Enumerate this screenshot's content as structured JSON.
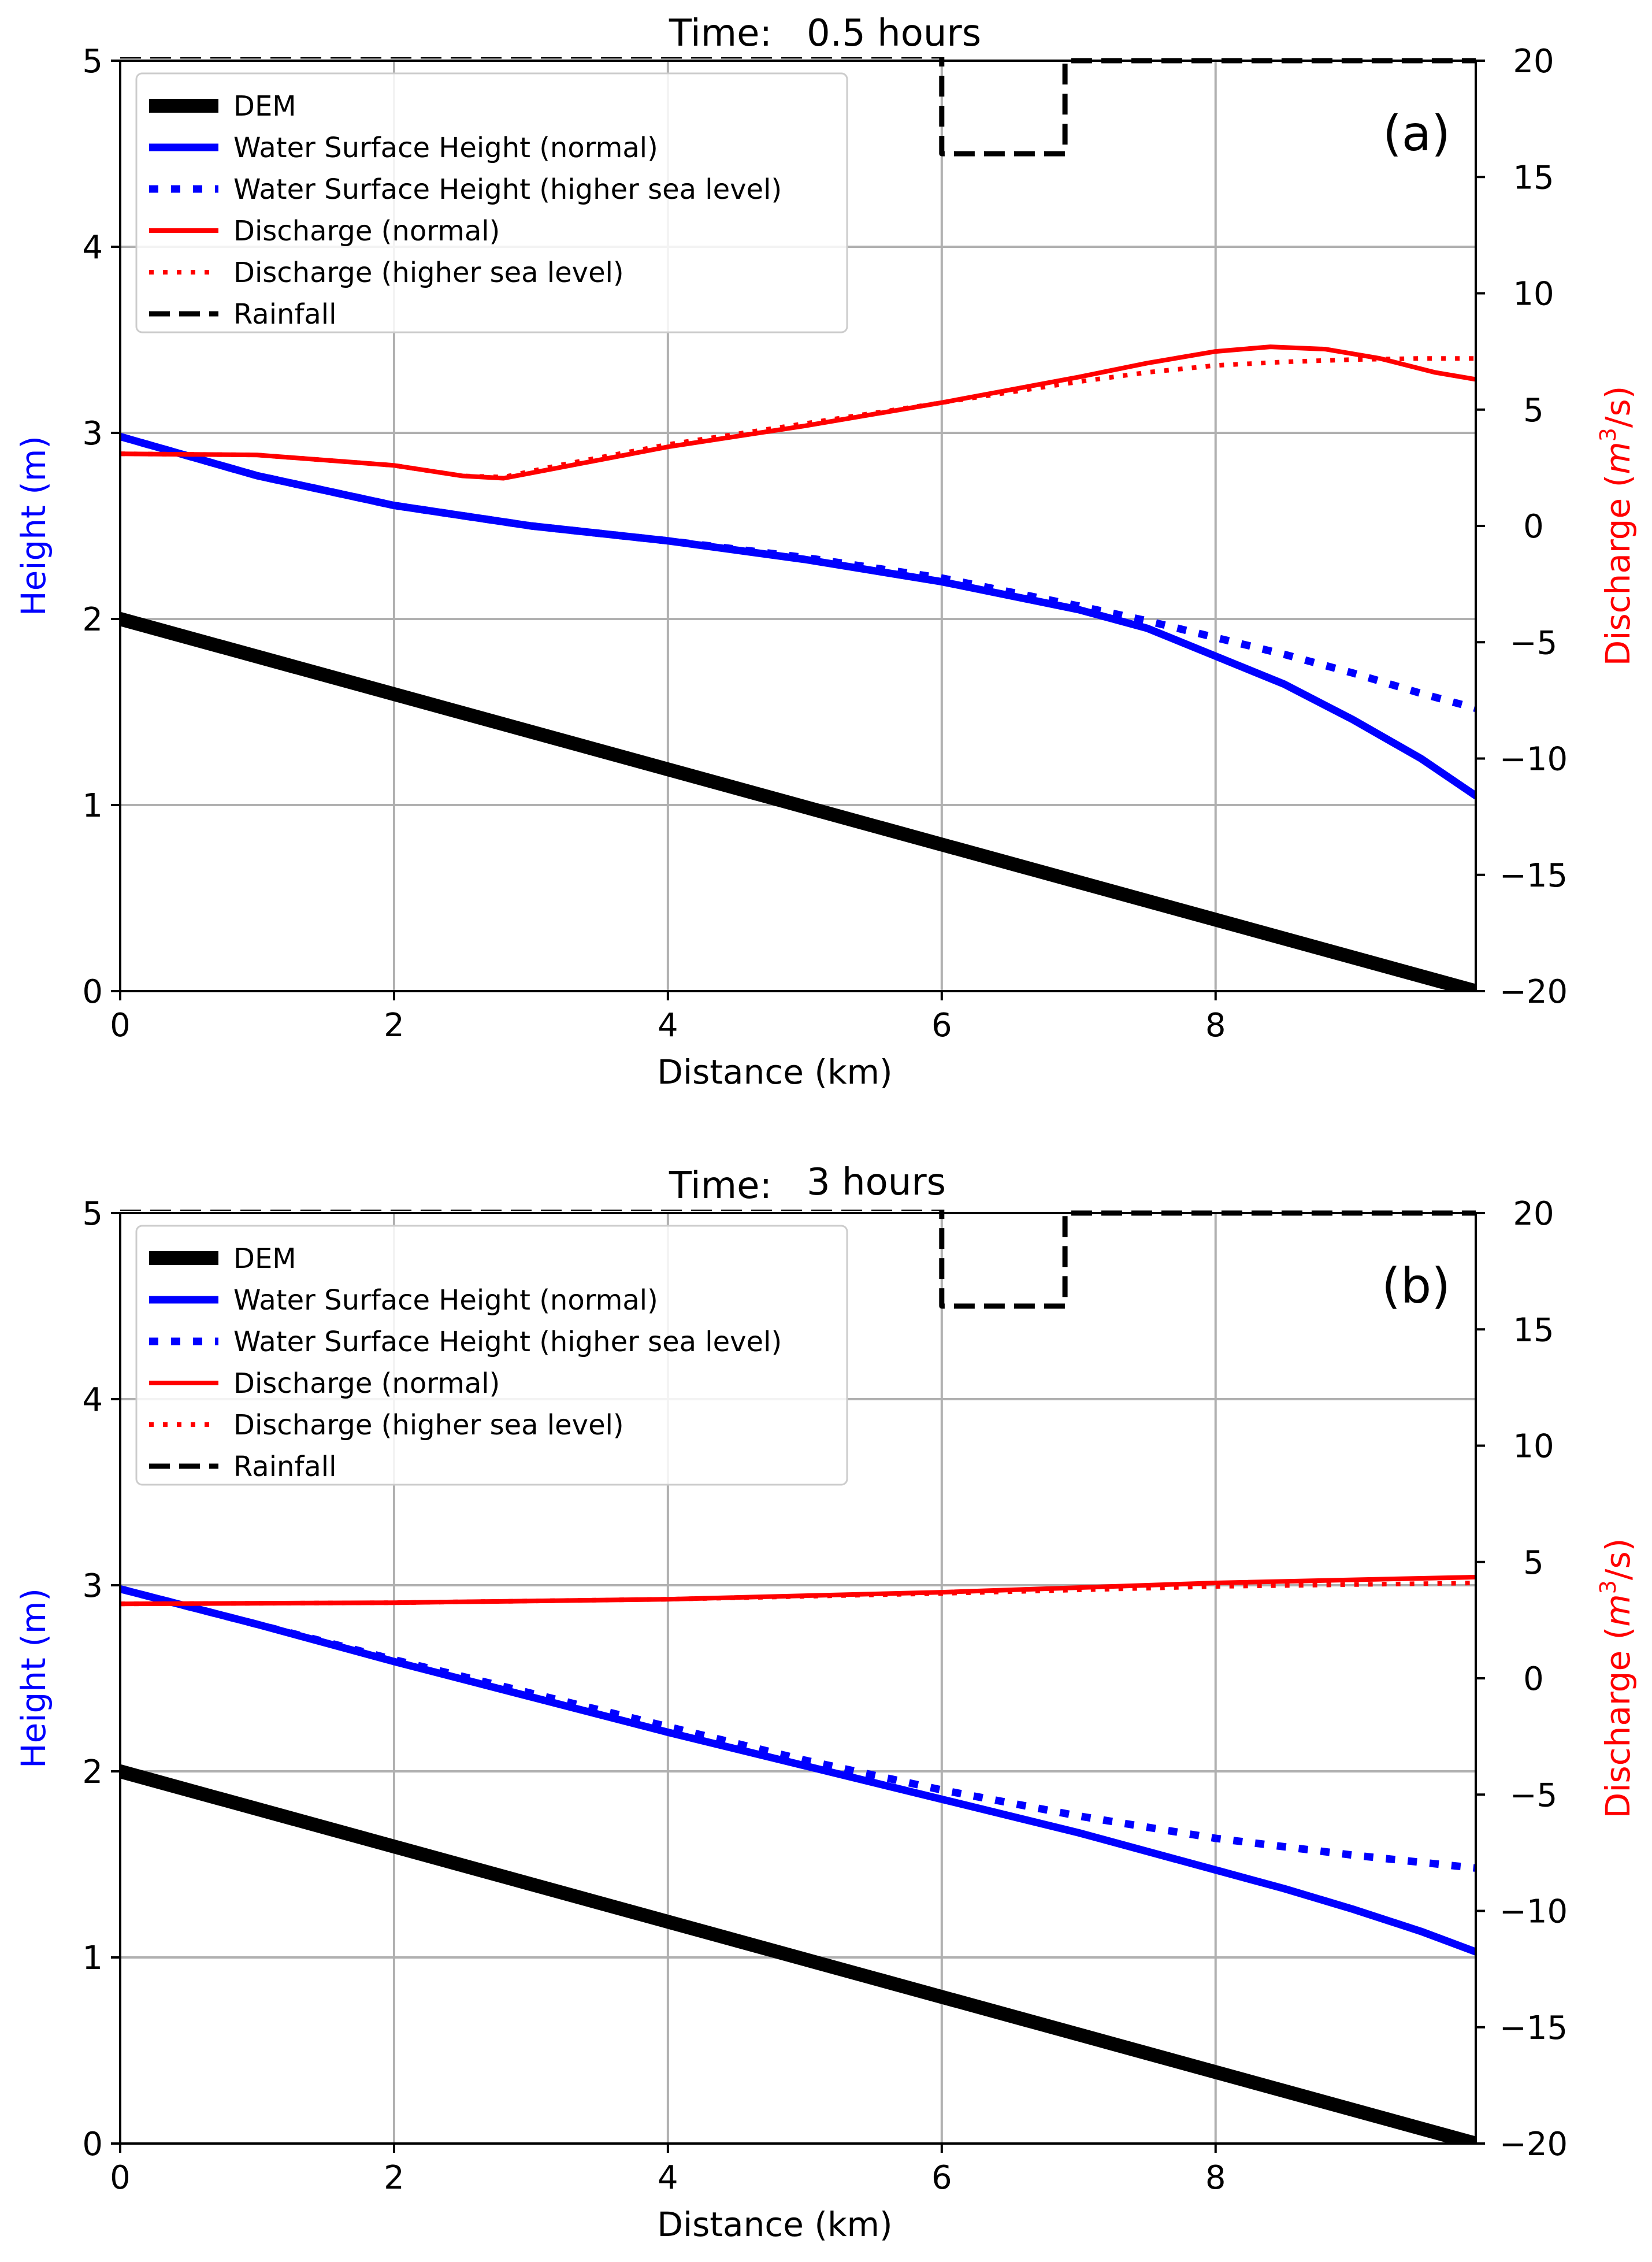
{
  "colors": {
    "dem": "#000000",
    "water": "#0000ff",
    "discharge": "#ff0000",
    "rainfall": "#000000",
    "grid": "#b0b0b0"
  },
  "chart_data": [
    {
      "type": "line",
      "panel_label": "(a)",
      "title_prefix": "Time:",
      "title_value": "0.5 hours",
      "xlabel": "Distance (km)",
      "ylabel": "Height (m)",
      "ylabel2_text": "Discharge (",
      "ylabel2_var": "m",
      "ylabel2_sup": "3",
      "ylabel2_tail": "/s)",
      "xlim": [
        0,
        9.9
      ],
      "ylim": [
        0,
        5
      ],
      "y2lim": [
        -20,
        20
      ],
      "xticks": [
        0,
        2,
        4,
        6,
        8
      ],
      "yticks": [
        0,
        1,
        2,
        3,
        4,
        5
      ],
      "y2ticks": [
        -20,
        -15,
        -10,
        -5,
        0,
        5,
        10,
        15,
        20
      ],
      "y2tick_labels": [
        "−20",
        "−15",
        "−10",
        "−5",
        "0",
        "5",
        "10",
        "15",
        "20"
      ],
      "legend": [
        {
          "key": "dem",
          "label": "DEM"
        },
        {
          "key": "wsh_normal",
          "label": "Water Surface Height (normal)"
        },
        {
          "key": "wsh_high",
          "label": "Water Surface Height (higher sea level)"
        },
        {
          "key": "q_normal",
          "label": "Discharge (normal)"
        },
        {
          "key": "q_high",
          "label": "Discharge (higher sea level)"
        },
        {
          "key": "rainfall",
          "label": "Rainfall"
        }
      ],
      "series": [
        {
          "name": "DEM",
          "key": "dem",
          "axis": "left",
          "x": [
            0,
            9.9
          ],
          "y": [
            2.0,
            0.0
          ]
        },
        {
          "name": "Water Surface Height (normal)",
          "key": "wsh_normal",
          "axis": "left",
          "x": [
            0,
            1,
            2,
            3,
            4,
            5,
            6,
            7,
            7.5,
            8,
            8.5,
            9,
            9.5,
            9.9
          ],
          "y": [
            2.98,
            2.77,
            2.61,
            2.5,
            2.42,
            2.32,
            2.2,
            2.05,
            1.95,
            1.8,
            1.65,
            1.46,
            1.25,
            1.05
          ]
        },
        {
          "name": "Water Surface Height (higher sea level)",
          "key": "wsh_high",
          "axis": "left",
          "x": [
            0,
            1,
            2,
            3,
            4,
            5,
            6,
            7,
            7.5,
            8,
            8.5,
            9,
            9.5,
            9.9
          ],
          "y": [
            2.98,
            2.77,
            2.61,
            2.5,
            2.42,
            2.33,
            2.22,
            2.07,
            1.99,
            1.9,
            1.81,
            1.71,
            1.6,
            1.52
          ]
        },
        {
          "name": "Discharge (normal)",
          "key": "q_normal",
          "axis": "right",
          "x": [
            0,
            1,
            2,
            2.5,
            2.8,
            3.2,
            4,
            5,
            6,
            7,
            7.5,
            8,
            8.4,
            8.8,
            9.2,
            9.6,
            9.9
          ],
          "y": [
            3.1,
            3.05,
            2.6,
            2.15,
            2.05,
            2.5,
            3.4,
            4.3,
            5.3,
            6.4,
            7.0,
            7.5,
            7.7,
            7.6,
            7.2,
            6.6,
            6.3
          ]
        },
        {
          "name": "Discharge (higher sea level)",
          "key": "q_high",
          "axis": "right",
          "x": [
            0,
            1,
            2,
            2.5,
            2.8,
            3.2,
            4,
            5,
            6,
            7,
            7.5,
            8,
            8.5,
            9,
            9.5,
            9.9
          ],
          "y": [
            3.1,
            3.05,
            2.6,
            2.15,
            2.1,
            2.6,
            3.5,
            4.4,
            5.3,
            6.2,
            6.6,
            6.9,
            7.05,
            7.15,
            7.2,
            7.2
          ]
        },
        {
          "name": "Rainfall",
          "key": "rainfall",
          "axis": "right",
          "x": [
            0,
            6.0,
            6.0,
            6.9,
            6.9,
            9.9
          ],
          "y": [
            20.2,
            20.2,
            16.0,
            16.0,
            20.0,
            20.0
          ]
        }
      ]
    },
    {
      "type": "line",
      "panel_label": "(b)",
      "title_prefix": "Time:",
      "title_value": "3 hours",
      "xlabel": "Distance (km)",
      "ylabel": "Height (m)",
      "ylabel2_text": "Discharge (",
      "ylabel2_var": "m",
      "ylabel2_sup": "3",
      "ylabel2_tail": "/s)",
      "xlim": [
        0,
        9.9
      ],
      "ylim": [
        0,
        5
      ],
      "y2lim": [
        -20,
        20
      ],
      "xticks": [
        0,
        2,
        4,
        6,
        8
      ],
      "yticks": [
        0,
        1,
        2,
        3,
        4,
        5
      ],
      "y2ticks": [
        -20,
        -15,
        -10,
        -5,
        0,
        5,
        10,
        15,
        20
      ],
      "y2tick_labels": [
        "−20",
        "−15",
        "−10",
        "−5",
        "0",
        "5",
        "10",
        "15",
        "20"
      ],
      "legend": [
        {
          "key": "dem",
          "label": "DEM"
        },
        {
          "key": "wsh_normal",
          "label": "Water Surface Height (normal)"
        },
        {
          "key": "wsh_high",
          "label": "Water Surface Height (higher sea level)"
        },
        {
          "key": "q_normal",
          "label": "Discharge (normal)"
        },
        {
          "key": "q_high",
          "label": "Discharge (higher sea level)"
        },
        {
          "key": "rainfall",
          "label": "Rainfall"
        }
      ],
      "series": [
        {
          "name": "DEM",
          "key": "dem",
          "axis": "left",
          "x": [
            0,
            9.9
          ],
          "y": [
            2.0,
            0.0
          ]
        },
        {
          "name": "Water Surface Height (normal)",
          "key": "wsh_normal",
          "axis": "left",
          "x": [
            0,
            1,
            2,
            3,
            4,
            5,
            6,
            7,
            8,
            8.5,
            9,
            9.5,
            9.9
          ],
          "y": [
            2.98,
            2.79,
            2.59,
            2.4,
            2.21,
            2.03,
            1.85,
            1.67,
            1.47,
            1.37,
            1.26,
            1.14,
            1.03
          ]
        },
        {
          "name": "Water Surface Height (higher sea level)",
          "key": "wsh_high",
          "axis": "left",
          "x": [
            0,
            1,
            2,
            3,
            4,
            5,
            6,
            7,
            8,
            9,
            9.9
          ],
          "y": [
            2.98,
            2.79,
            2.6,
            2.42,
            2.24,
            2.06,
            1.9,
            1.76,
            1.64,
            1.55,
            1.48
          ]
        },
        {
          "name": "Discharge (normal)",
          "key": "q_normal",
          "axis": "right",
          "x": [
            0,
            2,
            4,
            6,
            8,
            9.9
          ],
          "y": [
            3.2,
            3.25,
            3.4,
            3.7,
            4.1,
            4.35
          ]
        },
        {
          "name": "Discharge (higher sea level)",
          "key": "q_high",
          "axis": "right",
          "x": [
            0,
            2,
            4,
            6,
            8,
            9.9
          ],
          "y": [
            3.2,
            3.25,
            3.4,
            3.65,
            3.95,
            4.1
          ]
        },
        {
          "name": "Rainfall",
          "key": "rainfall",
          "axis": "right",
          "x": [
            0,
            6.0,
            6.0,
            6.9,
            6.9,
            9.9
          ],
          "y": [
            20.2,
            20.2,
            16.0,
            16.0,
            20.0,
            20.0
          ]
        }
      ]
    }
  ]
}
